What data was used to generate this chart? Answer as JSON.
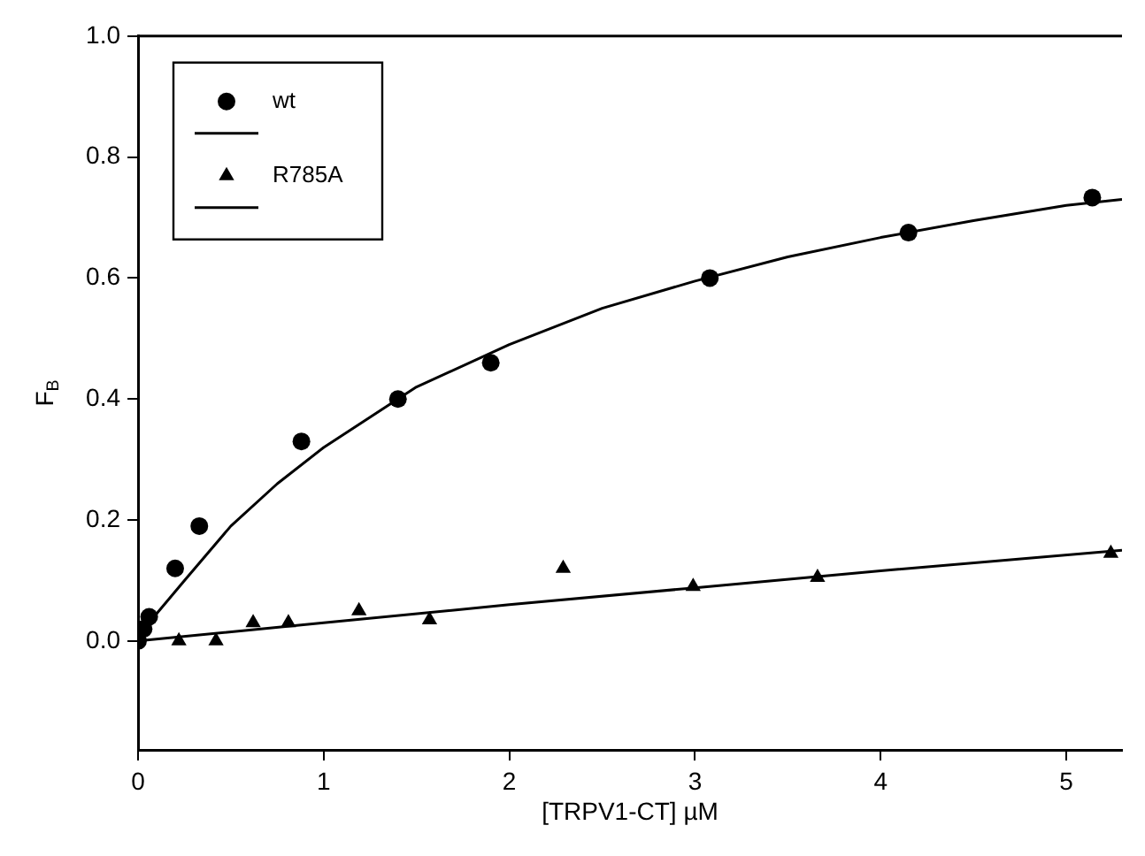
{
  "chart_data": {
    "type": "scatter",
    "xlabel": "[TRPV1-CT] µM",
    "ylabel": "F$_{B}$",
    "xlim": [
      0,
      5.3
    ],
    "xticks": [
      0,
      1,
      2,
      3,
      4,
      5
    ],
    "ylim": [
      -0.18,
      1.0
    ],
    "yticks": [
      {
        "value": 0,
        "label": "0.0"
      },
      0.2,
      0.4,
      0.6,
      0.8,
      {
        "value": 1,
        "label": "1.0"
      }
    ],
    "grid": false,
    "legend": "top left",
    "series": [
      {
        "name": "wt",
        "marker": "circle",
        "color": "#000000",
        "x": [
          0,
          0.03,
          0.06,
          0.2,
          0.33,
          0.88,
          1.4,
          1.9,
          3.08,
          4.15,
          5.14
        ],
        "values": [
          0,
          0.02,
          0.04,
          0.12,
          0.19,
          0.33,
          0.4,
          0.46,
          0.6,
          0.675,
          0.733
        ]
      },
      {
        "type": "line",
        "marker": "none",
        "line_style": "solid",
        "color": "#000000",
        "x": [
          0,
          0.1,
          0.25,
          0.5,
          0.75,
          1,
          1.25,
          1.5,
          2,
          2.5,
          3,
          3.5,
          4,
          4.5,
          5,
          5.3
        ],
        "values": [
          0,
          0.045,
          0.1,
          0.19,
          0.26,
          0.32,
          0.37,
          0.42,
          0.49,
          0.55,
          0.595,
          0.635,
          0.667,
          0.695,
          0.72,
          0.73
        ]
      },
      {
        "name": "R785A",
        "marker": "triangle",
        "color": "#000000",
        "x": [
          0.22,
          0.42,
          0.62,
          0.81,
          1.19,
          1.57,
          2.29,
          2.99,
          3.66,
          5.24
        ],
        "values": [
          0,
          0,
          0.03,
          0.03,
          0.05,
          0.035,
          0.12,
          0.09,
          0.105,
          0.145
        ]
      },
      {
        "type": "line",
        "marker": "none",
        "line_style": "solid",
        "color": "#000000",
        "x": [
          0,
          1,
          2,
          3,
          4,
          5.3
        ],
        "values": [
          0,
          0.03,
          0.06,
          0.088,
          0.116,
          0.15
        ]
      }
    ]
  }
}
